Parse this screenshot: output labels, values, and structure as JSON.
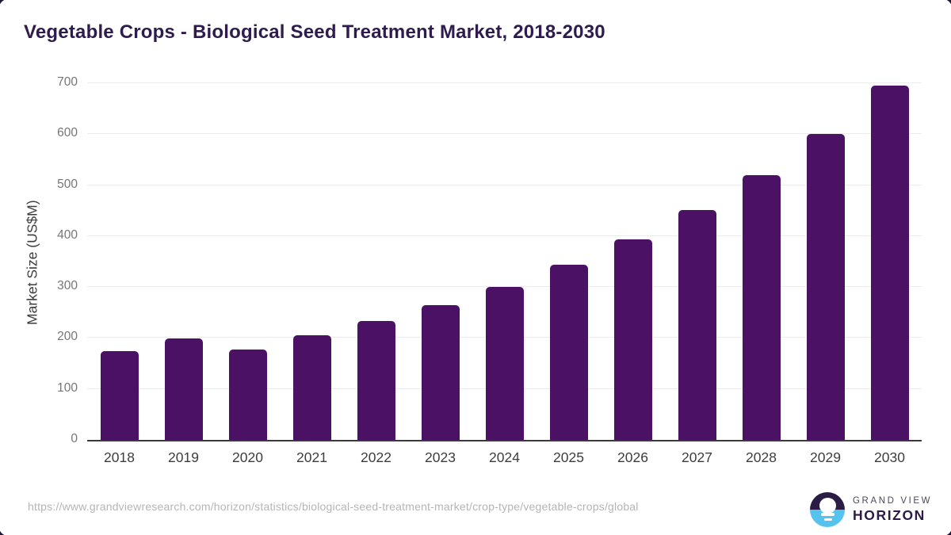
{
  "header": {
    "title": "Vegetable Crops - Biological Seed Treatment Market, 2018-2030"
  },
  "chart_data": {
    "type": "bar",
    "title": "Vegetable Crops - Biological Seed Treatment Market, 2018-2030",
    "categories": [
      "2018",
      "2019",
      "2020",
      "2021",
      "2022",
      "2023",
      "2024",
      "2025",
      "2026",
      "2027",
      "2028",
      "2029",
      "2030"
    ],
    "values": [
      175,
      199,
      178,
      205,
      233,
      264,
      300,
      344,
      394,
      451,
      519,
      600,
      695
    ],
    "xlabel": "",
    "ylabel": "Market Size (US$M)",
    "ylim": [
      0,
      700
    ],
    "ytick_interval": 100,
    "yticks": [
      0,
      100,
      200,
      300,
      400,
      500,
      600,
      700
    ],
    "grid": true,
    "legend": "none",
    "bar_color": "#4a1164"
  },
  "footer": {
    "source_url": "https://www.grandviewresearch.com/horizon/statistics/biological-seed-treatment-market/crop-type/vegetable-crops/global",
    "logo": {
      "line1": "GRAND VIEW",
      "line2": "HORIZON"
    }
  },
  "colors": {
    "bar": "#4a1164",
    "title_text": "#2f1c4e",
    "axis_line": "#3a3a3a",
    "gridline": "#ececec",
    "y_tick_text": "#757575",
    "x_tick_text": "#3d3d3d",
    "url_text": "#b5b5b5",
    "logo_dark_purple": "#2b1c45",
    "logo_light_blue": "#56c3ef",
    "corner_frame": "#1f1638"
  }
}
